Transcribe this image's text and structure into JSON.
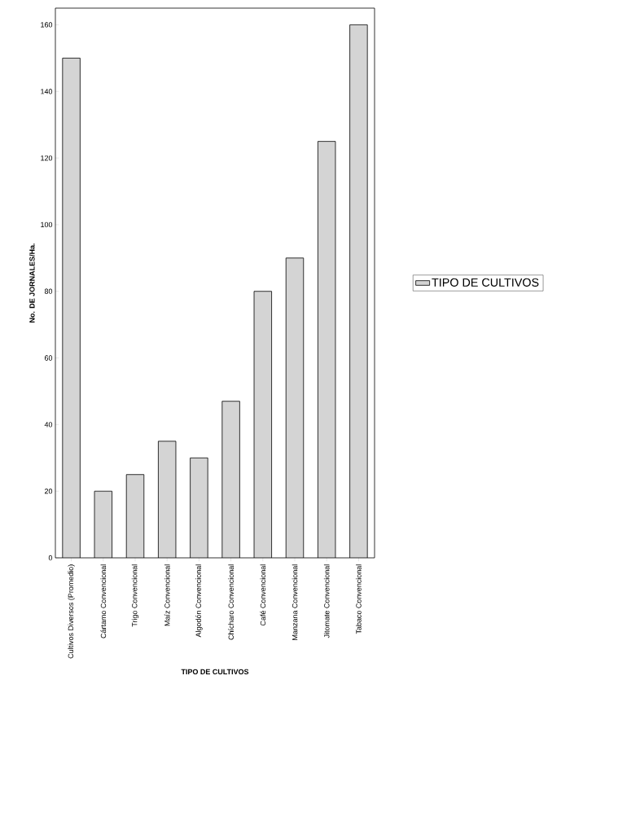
{
  "chart_data": {
    "type": "bar",
    "xlabel": "TIPO DE CULTIVOS",
    "ylabel": "No. DE JORNALES/Ha.",
    "categories": [
      "Cultivos Diversos (Promedio)",
      "Cártamo Convencional",
      "Trigo Convencional",
      "Maíz Convencional",
      "Algodón Convencional",
      "Chícharo Convencional",
      "Café Convencional",
      "Manzana Convencional",
      "Jitomate Convencional",
      "Tabaco Convencional"
    ],
    "series": [
      {
        "name": "TIPO DE CULTIVOS",
        "color": "#d4d4d4",
        "values": [
          150,
          20,
          25,
          35,
          30,
          47,
          80,
          90,
          125,
          160
        ]
      }
    ],
    "ylim": [
      0,
      165
    ],
    "yticks": [
      0,
      20,
      40,
      60,
      80,
      100,
      120,
      140,
      160
    ],
    "grid": false,
    "legend": "right"
  }
}
